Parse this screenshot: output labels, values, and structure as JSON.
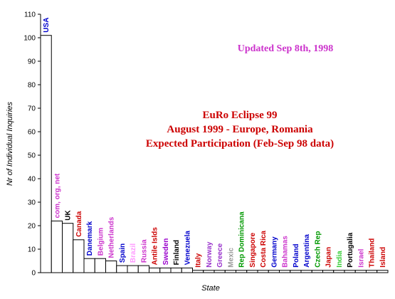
{
  "updated_note": "Updated Sep 8th, 1998",
  "colors": {
    "updated_note": "#cc33cc",
    "title": "#cc0000",
    "bar_fill": "#ffffff",
    "bar_stroke": "#000000"
  },
  "chart_data": {
    "type": "bar",
    "title_lines": [
      "EuRo Eclipse 99",
      "August 1999 - Europe, Romania",
      "Expected Participation (Feb-Sep 98 data)"
    ],
    "xlabel": "State",
    "ylabel": "Nr of Individual Inquiries",
    "ylim": [
      0,
      110
    ],
    "yticks": [
      0,
      10,
      20,
      30,
      40,
      50,
      60,
      70,
      80,
      90,
      100,
      110
    ],
    "grid": false,
    "categories": [
      "USA",
      "com, org, net",
      "UK",
      "Canada",
      "Danemark",
      "Belgium",
      "Netherlands",
      "Spain",
      "Brazil",
      "Russia",
      "Antile Islds",
      "Sweden",
      "Finland",
      "Venezuela",
      "Italy",
      "Norway",
      "Greece",
      "Mexic",
      "Rep Dominicana",
      "Singapore",
      "Costa Rica",
      "Germany",
      "Bahamas",
      "Poland",
      "Argentina",
      "Czech Rep",
      "Japan",
      "India",
      "Portugalia",
      "Israel",
      "Thailand",
      "Island"
    ],
    "values": [
      101,
      22,
      21,
      14,
      6,
      6,
      5,
      3,
      3,
      3,
      2,
      2,
      2,
      2,
      1,
      1,
      1,
      1,
      1,
      1,
      1,
      1,
      1,
      1,
      1,
      1,
      1,
      1,
      1,
      1,
      1,
      1
    ],
    "label_colors": [
      "#0000cc",
      "#cc33cc",
      "#000000",
      "#cc0000",
      "#0000cc",
      "#cc33cc",
      "#cc33cc",
      "#0000cc",
      "#ff99ff",
      "#cc33cc",
      "#cc0000",
      "#9900cc",
      "#000000",
      "#0000cc",
      "#cc0000",
      "#9933cc",
      "#9933cc",
      "#999999",
      "#009900",
      "#cc0000",
      "#cc0000",
      "#0000cc",
      "#cc33cc",
      "#0000cc",
      "#0000cc",
      "#009900",
      "#cc0000",
      "#33cc33",
      "#000000",
      "#cc33cc",
      "#cc0000",
      "#cc0000"
    ]
  }
}
